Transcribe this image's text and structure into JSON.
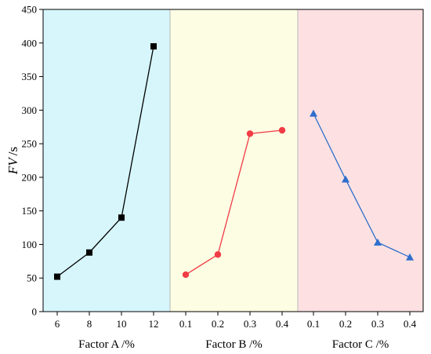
{
  "chart_data": {
    "type": "line",
    "ylabel_italic": "FV",
    "ylabel_unit": "/s",
    "ylim": [
      0,
      450
    ],
    "yticks": [
      0,
      50,
      100,
      150,
      200,
      250,
      300,
      350,
      400,
      450
    ],
    "grid": false,
    "legend": "none",
    "panels": [
      {
        "xlabel": "Factor A /%",
        "background": "#d6f6fc",
        "color": "#000000",
        "marker": "square",
        "x": [
          "6",
          "8",
          "10",
          "12"
        ],
        "values": [
          52,
          88,
          140,
          395
        ]
      },
      {
        "xlabel": "Factor B /%",
        "background": "#fdfde3",
        "color": "#f03c46",
        "marker": "circle",
        "x": [
          "0.1",
          "0.2",
          "0.3",
          "0.4"
        ],
        "values": [
          55,
          85,
          265,
          270
        ]
      },
      {
        "xlabel": "Factor C /%",
        "background": "#fde1e2",
        "color": "#2f6fcc",
        "marker": "triangle",
        "x": [
          "0.1",
          "0.2",
          "0.3",
          "0.4"
        ],
        "values": [
          295,
          197,
          103,
          81
        ]
      }
    ]
  }
}
